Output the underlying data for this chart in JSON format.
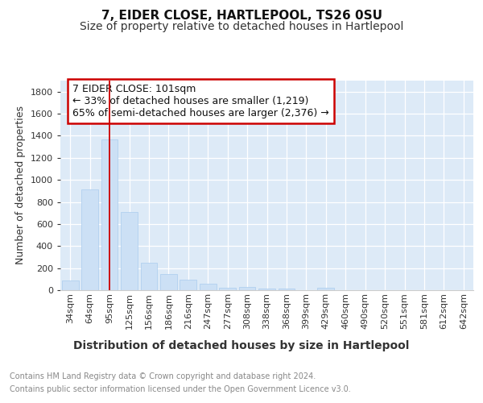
{
  "title": "7, EIDER CLOSE, HARTLEPOOL, TS26 0SU",
  "subtitle": "Size of property relative to detached houses in Hartlepool",
  "xlabel": "Distribution of detached houses by size in Hartlepool",
  "ylabel": "Number of detached properties",
  "categories": [
    "34sqm",
    "64sqm",
    "95sqm",
    "125sqm",
    "156sqm",
    "186sqm",
    "216sqm",
    "247sqm",
    "277sqm",
    "308sqm",
    "338sqm",
    "368sqm",
    "399sqm",
    "429sqm",
    "460sqm",
    "490sqm",
    "520sqm",
    "551sqm",
    "581sqm",
    "612sqm",
    "642sqm"
  ],
  "values": [
    90,
    910,
    1370,
    710,
    248,
    145,
    95,
    55,
    25,
    30,
    18,
    12,
    0,
    20,
    0,
    0,
    0,
    0,
    0,
    0,
    0
  ],
  "bar_color": "#cce0f5",
  "bar_edge_color": "#aaccee",
  "fig_bg_color": "#ffffff",
  "plot_bg_color": "#ddeaf7",
  "red_line_index": 2,
  "annotation_title": "7 EIDER CLOSE: 101sqm",
  "annotation_line1": "← 33% of detached houses are smaller (1,219)",
  "annotation_line2": "65% of semi-detached houses are larger (2,376) →",
  "annotation_box_color": "#ffffff",
  "annotation_border_color": "#cc0000",
  "footer_line1": "Contains HM Land Registry data © Crown copyright and database right 2024.",
  "footer_line2": "Contains public sector information licensed under the Open Government Licence v3.0.",
  "ylim": [
    0,
    1900
  ],
  "yticks": [
    0,
    200,
    400,
    600,
    800,
    1000,
    1200,
    1400,
    1600,
    1800
  ],
  "title_fontsize": 11,
  "subtitle_fontsize": 10,
  "xlabel_fontsize": 10,
  "ylabel_fontsize": 9,
  "tick_fontsize": 8,
  "annotation_fontsize": 9,
  "footer_fontsize": 7
}
